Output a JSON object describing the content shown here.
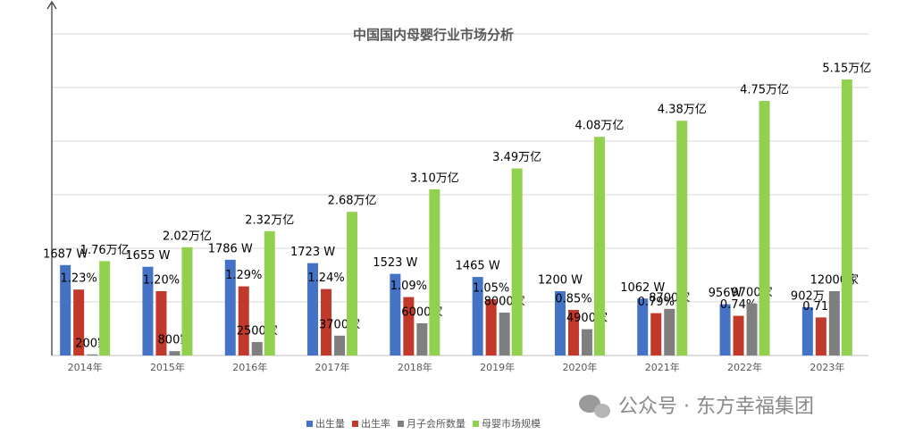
{
  "chart_data": {
    "type": "bar",
    "title": "中国国内母婴行业市场分析",
    "categories": [
      "2014年",
      "2015年",
      "2016年",
      "2017年",
      "2018年",
      "2019年",
      "2020年",
      "2021年",
      "2022年",
      "2023年"
    ],
    "series": [
      {
        "name": "出生量",
        "color": "#4472c4",
        "ylim": [
          0,
          6000
        ],
        "values": [
          1687,
          1655,
          1786,
          1723,
          1523,
          1465,
          1200,
          1062,
          956,
          902
        ],
        "value_labels": [
          "1687 W",
          "1655 W",
          "1786 W",
          "1723 W",
          "1523 W",
          "1465 W",
          "1200 W",
          "1062 W",
          "956W",
          "902万"
        ]
      },
      {
        "name": "出生率",
        "color": "#c0392b",
        "ylim": [
          0,
          6
        ],
        "values": [
          1.23,
          1.2,
          1.29,
          1.24,
          1.09,
          1.05,
          0.85,
          0.79,
          0.74,
          0.71
        ],
        "value_labels": [
          "1.23%",
          "1.20%",
          "1.29%",
          "1.24%",
          "1.09%",
          "1.05%",
          "0.85%",
          "0.79%",
          "0.74%",
          "0.71%"
        ]
      },
      {
        "name": "月子会所数量",
        "color": "#7f7f7f",
        "ylim": [
          0,
          60000
        ],
        "values": [
          200,
          800,
          2500,
          3700,
          6000,
          8000,
          4900,
          8700,
          9700,
          12000
        ],
        "value_labels": [
          "200家",
          "800家",
          "2500家",
          "3700家",
          "6000家",
          "8000家",
          "4900家",
          "8700家",
          "9700家",
          "12000家"
        ]
      },
      {
        "name": "母婴市场规模",
        "color": "#92d050",
        "ylim": [
          0,
          6
        ],
        "values": [
          1.76,
          2.02,
          2.32,
          2.68,
          3.1,
          3.49,
          4.08,
          4.38,
          4.75,
          5.15
        ],
        "value_labels": [
          "1.76万亿",
          "2.02万亿",
          "2.32万亿",
          "2.68万亿",
          "3.10万亿",
          "3.49万亿",
          "4.08万亿",
          "4.38万亿",
          "4.75万亿",
          "5.15万亿"
        ]
      }
    ]
  },
  "watermark": "公众号 · 东方幸福集团"
}
